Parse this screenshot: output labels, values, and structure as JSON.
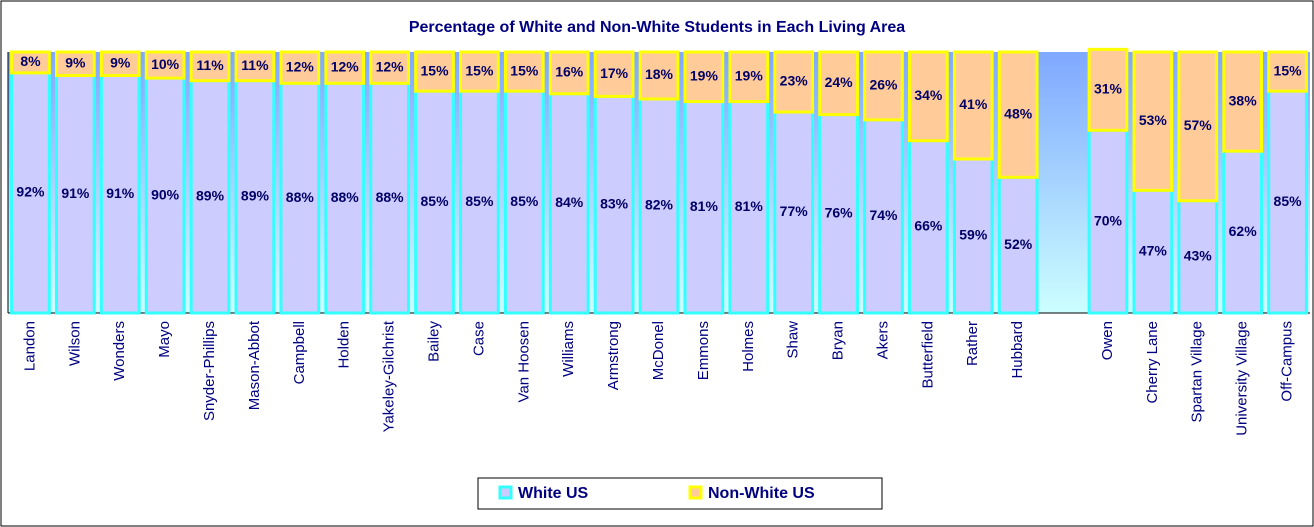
{
  "chart_data": {
    "type": "stacked_bar",
    "title": "Percentage of White and Non-White Students in Each Living Area",
    "categories": [
      "Landon",
      "Wilson",
      "Wonders",
      "Mayo",
      "Snyder-Phillips",
      "Mason-Abbot",
      "Campbell",
      "Holden",
      "Yakeley-Gilchrist",
      "Bailey",
      "Case",
      "Van Hoosen",
      "Williams",
      "Armstrong",
      "McDonel",
      "Emmons",
      "Holmes",
      "Shaw",
      "Bryan",
      "Akers",
      "Butterfield",
      "Rather",
      "Hubbard",
      null,
      "Owen",
      "Cherry Lane",
      "Spartan Village",
      "University Village",
      "Off-Campus"
    ],
    "series": [
      {
        "name": "White US",
        "color": "#ccccff",
        "edge": "#33ffff",
        "values": [
          92,
          91,
          91,
          90,
          89,
          89,
          88,
          88,
          88,
          85,
          85,
          85,
          84,
          83,
          82,
          81,
          81,
          77,
          76,
          74,
          66,
          59,
          52,
          null,
          70,
          47,
          43,
          62,
          85
        ],
        "value_labels": [
          "92%",
          "91%",
          "91%",
          "90%",
          "89%",
          "89%",
          "88%",
          "88%",
          "88%",
          "85%",
          "85%",
          "85%",
          "84%",
          "83%",
          "82%",
          "81%",
          "81%",
          "77%",
          "76%",
          "74%",
          "66%",
          "59%",
          "52%",
          null,
          "70%",
          "47%",
          "43%",
          "62%",
          "85%"
        ]
      },
      {
        "name": "Non-White US",
        "color": "#ffcc99",
        "edge": "#ffff00",
        "values": [
          8,
          9,
          9,
          10,
          11,
          11,
          12,
          12,
          12,
          15,
          15,
          15,
          16,
          17,
          18,
          19,
          19,
          23,
          24,
          26,
          34,
          41,
          48,
          null,
          31,
          53,
          57,
          38,
          15
        ],
        "value_labels": [
          "8%",
          "9%",
          "9%",
          "10%",
          "11%",
          "11%",
          "12%",
          "12%",
          "12%",
          "15%",
          "15%",
          "15%",
          "16%",
          "17%",
          "18%",
          "19%",
          "19%",
          "23%",
          "24%",
          "26%",
          "34%",
          "41%",
          "48%",
          null,
          "31%",
          "53%",
          "57%",
          "38%",
          "15%"
        ]
      }
    ],
    "ylim": [
      0,
      100
    ],
    "legend": "bottom"
  }
}
